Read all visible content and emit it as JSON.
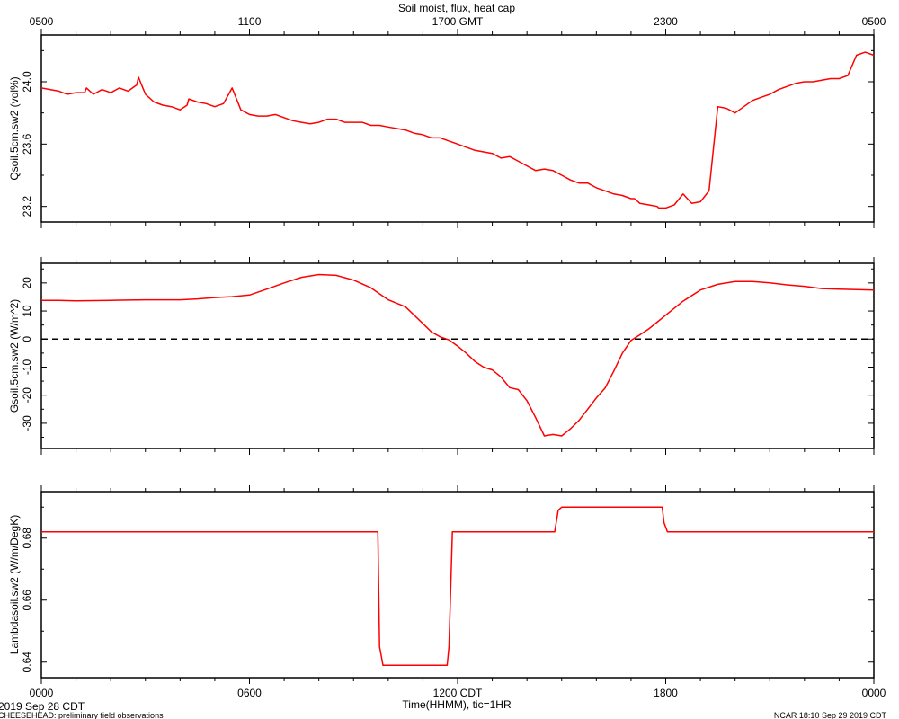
{
  "header": {
    "title": "Soil moist, flux, heat cap",
    "gmt_ticks": [
      "0500",
      "1100",
      "1700 GMT",
      "2300",
      "0500"
    ]
  },
  "footer": {
    "cdt_ticks": [
      "0000",
      "0600",
      "1200 CDT",
      "1800",
      "0000"
    ],
    "xlabel": "Time(HHMM), tic=1HR",
    "date_label": "2019 Sep 28 CDT",
    "project_label": "CHEESEHEAD: preliminary field observations",
    "credit_label": "NCAR 18:10 Sep 29 2019 CDT"
  },
  "colors": {
    "line": "#ff0000",
    "axis": "#000000",
    "zero_line": "#000000"
  },
  "chart_data": [
    {
      "type": "line",
      "title": "Soil moist, flux, heat cap",
      "ylabel": "Qsoil.5cm.sw2 (vol%)",
      "xlim": [
        0,
        24
      ],
      "ylim": [
        23.1,
        24.3
      ],
      "yticks": [
        "23.2",
        "23.6",
        "24.0"
      ],
      "ytick_values": [
        23.2,
        23.6,
        24.0
      ],
      "x": [
        0,
        0.5,
        0.75,
        1,
        1.25,
        1.3,
        1.5,
        1.75,
        2,
        2.25,
        2.5,
        2.75,
        2.8,
        3,
        3.25,
        3.5,
        3.75,
        4,
        4.2,
        4.25,
        4.5,
        4.75,
        5,
        5.25,
        5.5,
        5.75,
        6,
        6.25,
        6.5,
        6.75,
        7,
        7.25,
        7.5,
        7.75,
        8,
        8.25,
        8.5,
        8.75,
        9,
        9.25,
        9.5,
        9.75,
        10,
        10.25,
        10.5,
        10.75,
        11,
        11.25,
        11.5,
        11.75,
        12,
        12.25,
        12.5,
        12.75,
        13,
        13.25,
        13.5,
        13.75,
        14,
        14.25,
        14.5,
        14.75,
        15,
        15.25,
        15.5,
        15.75,
        16,
        16.25,
        16.5,
        16.75,
        17,
        17.1,
        17.25,
        17.5,
        17.75,
        17.8,
        18,
        18.25,
        18.5,
        18.75,
        19,
        19.25,
        19.5,
        19.75,
        20,
        20.25,
        20.5,
        20.75,
        21,
        21.25,
        21.5,
        21.75,
        22,
        22.25,
        22.5,
        22.75,
        23,
        23.25,
        23.5,
        23.75,
        24
      ],
      "series": [
        {
          "values": [
            23.96,
            23.94,
            23.92,
            23.93,
            23.93,
            23.96,
            23.92,
            23.95,
            23.93,
            23.96,
            23.94,
            23.98,
            24.03,
            23.92,
            23.87,
            23.85,
            23.84,
            23.82,
            23.85,
            23.89,
            23.87,
            23.86,
            23.84,
            23.86,
            23.96,
            23.82,
            23.79,
            23.78,
            23.78,
            23.79,
            23.77,
            23.75,
            23.74,
            23.73,
            23.74,
            23.76,
            23.76,
            23.74,
            23.74,
            23.74,
            23.72,
            23.72,
            23.71,
            23.7,
            23.69,
            23.67,
            23.66,
            23.64,
            23.64,
            23.62,
            23.6,
            23.58,
            23.56,
            23.55,
            23.54,
            23.51,
            23.52,
            23.49,
            23.46,
            23.43,
            23.44,
            23.43,
            23.4,
            23.37,
            23.35,
            23.35,
            23.32,
            23.3,
            23.28,
            23.27,
            23.25,
            23.25,
            23.22,
            23.21,
            23.2,
            23.19,
            23.19,
            23.21,
            23.28,
            23.22,
            23.23,
            23.3,
            23.84,
            23.83,
            23.8,
            23.84,
            23.88,
            23.9,
            23.92,
            23.95,
            23.97,
            23.99,
            24.0,
            24.0,
            24.01,
            24.02,
            24.02,
            24.04,
            24.17,
            24.19,
            24.17
          ]
        }
      ]
    },
    {
      "type": "line",
      "ylabel": "Gsoil.5cm.sw2 (W/m^2)",
      "xlim": [
        0,
        24
      ],
      "ylim": [
        -39,
        27
      ],
      "yticks": [
        "-30",
        "-20",
        "-10",
        "0",
        "10",
        "20"
      ],
      "ytick_values": [
        -30,
        -20,
        -10,
        0,
        10,
        20
      ],
      "reference_line": 0,
      "x": [
        0,
        0.5,
        1,
        1.5,
        2,
        2.5,
        3,
        3.5,
        4,
        4.5,
        5,
        5.5,
        6,
        6.5,
        7,
        7.5,
        8,
        8.5,
        9,
        9.5,
        10,
        10.5,
        11,
        11.25,
        11.5,
        11.75,
        12,
        12.25,
        12.5,
        12.75,
        13,
        13.25,
        13.5,
        13.75,
        14,
        14.25,
        14.5,
        14.75,
        15,
        15.25,
        15.5,
        15.75,
        16,
        16.25,
        16.5,
        16.75,
        17,
        17.25,
        17.5,
        17.75,
        18,
        18.5,
        19,
        19.5,
        20,
        20.5,
        21,
        21.5,
        22,
        22.5,
        23,
        23.5,
        24
      ],
      "series": [
        {
          "values": [
            13.8,
            13.8,
            13.6,
            13.7,
            13.8,
            13.9,
            14.0,
            14.0,
            14.0,
            14.3,
            14.8,
            15.1,
            15.7,
            17.8,
            20.0,
            22.0,
            23.0,
            22.7,
            21.0,
            18.3,
            14.0,
            11.5,
            5.5,
            2.5,
            0.8,
            -0.3,
            -2.5,
            -5.0,
            -8.0,
            -10.0,
            -11.0,
            -13.5,
            -17.3,
            -18.0,
            -22.0,
            -28.0,
            -34.5,
            -34.0,
            -34.5,
            -32.0,
            -29.0,
            -25.0,
            -21.0,
            -17.5,
            -11.5,
            -5.0,
            -0.5,
            1.5,
            3.5,
            6.0,
            8.5,
            13.5,
            17.5,
            19.5,
            20.5,
            20.5,
            20.0,
            19.3,
            18.8,
            18.0,
            17.8,
            17.6,
            17.5
          ]
        }
      ]
    },
    {
      "type": "line",
      "ylabel": "Lambdasoil.sw2 (W/m/DegK)",
      "xlim": [
        0,
        24
      ],
      "ylim": [
        0.635,
        0.695
      ],
      "yticks": [
        "0.64",
        "0.66",
        "0.68"
      ],
      "ytick_values": [
        0.64,
        0.66,
        0.68
      ],
      "x": [
        0,
        9.7,
        9.75,
        9.85,
        10.0,
        11.7,
        11.75,
        11.85,
        14.8,
        14.9,
        15.0,
        17.9,
        17.95,
        18.05,
        24
      ],
      "series": [
        {
          "values": [
            0.682,
            0.682,
            0.645,
            0.639,
            0.639,
            0.639,
            0.645,
            0.682,
            0.682,
            0.689,
            0.69,
            0.69,
            0.685,
            0.682,
            0.682
          ]
        }
      ]
    }
  ]
}
